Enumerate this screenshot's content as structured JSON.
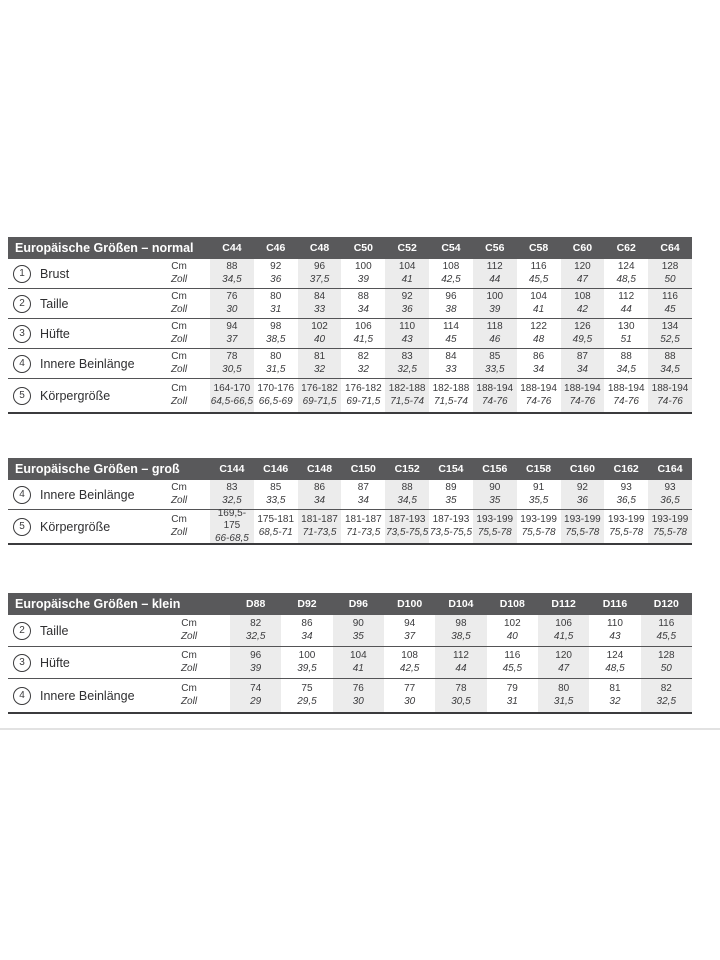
{
  "colors": {
    "header_bg": "#59595b",
    "header_text": "#ffffff",
    "column_stripe": "#ececec",
    "body_text": "#3b3b3d",
    "divider": "#e2e2e2"
  },
  "units": {
    "primary": "Cm",
    "secondary": "Zoll"
  },
  "tables": [
    {
      "title": "Europäische Größen – normal",
      "sizes": [
        "C44",
        "C46",
        "C48",
        "C50",
        "C52",
        "C54",
        "C56",
        "C58",
        "C60",
        "C62",
        "C64"
      ],
      "rows": [
        {
          "num": "1",
          "label": "Brust",
          "cm": [
            "88",
            "92",
            "96",
            "100",
            "104",
            "108",
            "112",
            "116",
            "120",
            "124",
            "128"
          ],
          "zoll": [
            "34,5",
            "36",
            "37,5",
            "39",
            "41",
            "42,5",
            "44",
            "45,5",
            "47",
            "48,5",
            "50"
          ]
        },
        {
          "num": "2",
          "label": "Taille",
          "cm": [
            "76",
            "80",
            "84",
            "88",
            "92",
            "96",
            "100",
            "104",
            "108",
            "112",
            "116"
          ],
          "zoll": [
            "30",
            "31",
            "33",
            "34",
            "36",
            "38",
            "39",
            "41",
            "42",
            "44",
            "45"
          ]
        },
        {
          "num": "3",
          "label": "Hüfte",
          "cm": [
            "94",
            "98",
            "102",
            "106",
            "110",
            "114",
            "118",
            "122",
            "126",
            "130",
            "134"
          ],
          "zoll": [
            "37",
            "38,5",
            "40",
            "41,5",
            "43",
            "45",
            "46",
            "48",
            "49,5",
            "51",
            "52,5"
          ]
        },
        {
          "num": "4",
          "label": "Innere Beinlänge",
          "cm": [
            "78",
            "80",
            "81",
            "82",
            "83",
            "84",
            "85",
            "86",
            "87",
            "88",
            "88"
          ],
          "zoll": [
            "30,5",
            "31,5",
            "32",
            "32",
            "32,5",
            "33",
            "33,5",
            "34",
            "34",
            "34,5",
            "34,5"
          ]
        },
        {
          "num": "5",
          "label": "Körpergröße",
          "cm": [
            "164-170",
            "170-176",
            "176-182",
            "176-182",
            "182-188",
            "182-188",
            "188-194",
            "188-194",
            "188-194",
            "188-194",
            "188-194"
          ],
          "zoll": [
            "64,5-66,5",
            "66,5-69",
            "69-71,5",
            "69-71,5",
            "71,5-74",
            "71,5-74",
            "74-76",
            "74-76",
            "74-76",
            "74-76",
            "74-76"
          ]
        }
      ]
    },
    {
      "title": "Europäische Größen – groß",
      "sizes": [
        "C144",
        "C146",
        "C148",
        "C150",
        "C152",
        "C154",
        "C156",
        "C158",
        "C160",
        "C162",
        "C164"
      ],
      "rows": [
        {
          "num": "4",
          "label": "Innere Beinlänge",
          "cm": [
            "83",
            "85",
            "86",
            "87",
            "88",
            "89",
            "90",
            "91",
            "92",
            "93",
            "93"
          ],
          "zoll": [
            "32,5",
            "33,5",
            "34",
            "34",
            "34,5",
            "35",
            "35",
            "35,5",
            "36",
            "36,5",
            "36,5"
          ]
        },
        {
          "num": "5",
          "label": "Körpergröße",
          "cm": [
            "169,5-175",
            "175-181",
            "181-187",
            "181-187",
            "187-193",
            "187-193",
            "193-199",
            "193-199",
            "193-199",
            "193-199",
            "193-199"
          ],
          "zoll": [
            "66-68,5",
            "68,5-71",
            "71-73,5",
            "71-73,5",
            "73,5-75,5",
            "73,5-75,5",
            "75,5-78",
            "75,5-78",
            "75,5-78",
            "75,5-78",
            "75,5-78"
          ]
        }
      ]
    },
    {
      "title": "Europäische Größen – klein",
      "sizes": [
        "D88",
        "D92",
        "D96",
        "D100",
        "D104",
        "D108",
        "D112",
        "D116",
        "D120"
      ],
      "rows": [
        {
          "num": "2",
          "label": "Taille",
          "cm": [
            "82",
            "86",
            "90",
            "94",
            "98",
            "102",
            "106",
            "110",
            "116"
          ],
          "zoll": [
            "32,5",
            "34",
            "35",
            "37",
            "38,5",
            "40",
            "41,5",
            "43",
            "45,5"
          ]
        },
        {
          "num": "3",
          "label": "Hüfte",
          "cm": [
            "96",
            "100",
            "104",
            "108",
            "112",
            "116",
            "120",
            "124",
            "128"
          ],
          "zoll": [
            "39",
            "39,5",
            "41",
            "42,5",
            "44",
            "45,5",
            "47",
            "48,5",
            "50"
          ]
        },
        {
          "num": "4",
          "label": "Innere Beinlänge",
          "cm": [
            "74",
            "75",
            "76",
            "77",
            "78",
            "79",
            "80",
            "81",
            "82"
          ],
          "zoll": [
            "29",
            "29,5",
            "30",
            "30",
            "30,5",
            "31",
            "31,5",
            "32",
            "32,5"
          ]
        }
      ]
    }
  ]
}
